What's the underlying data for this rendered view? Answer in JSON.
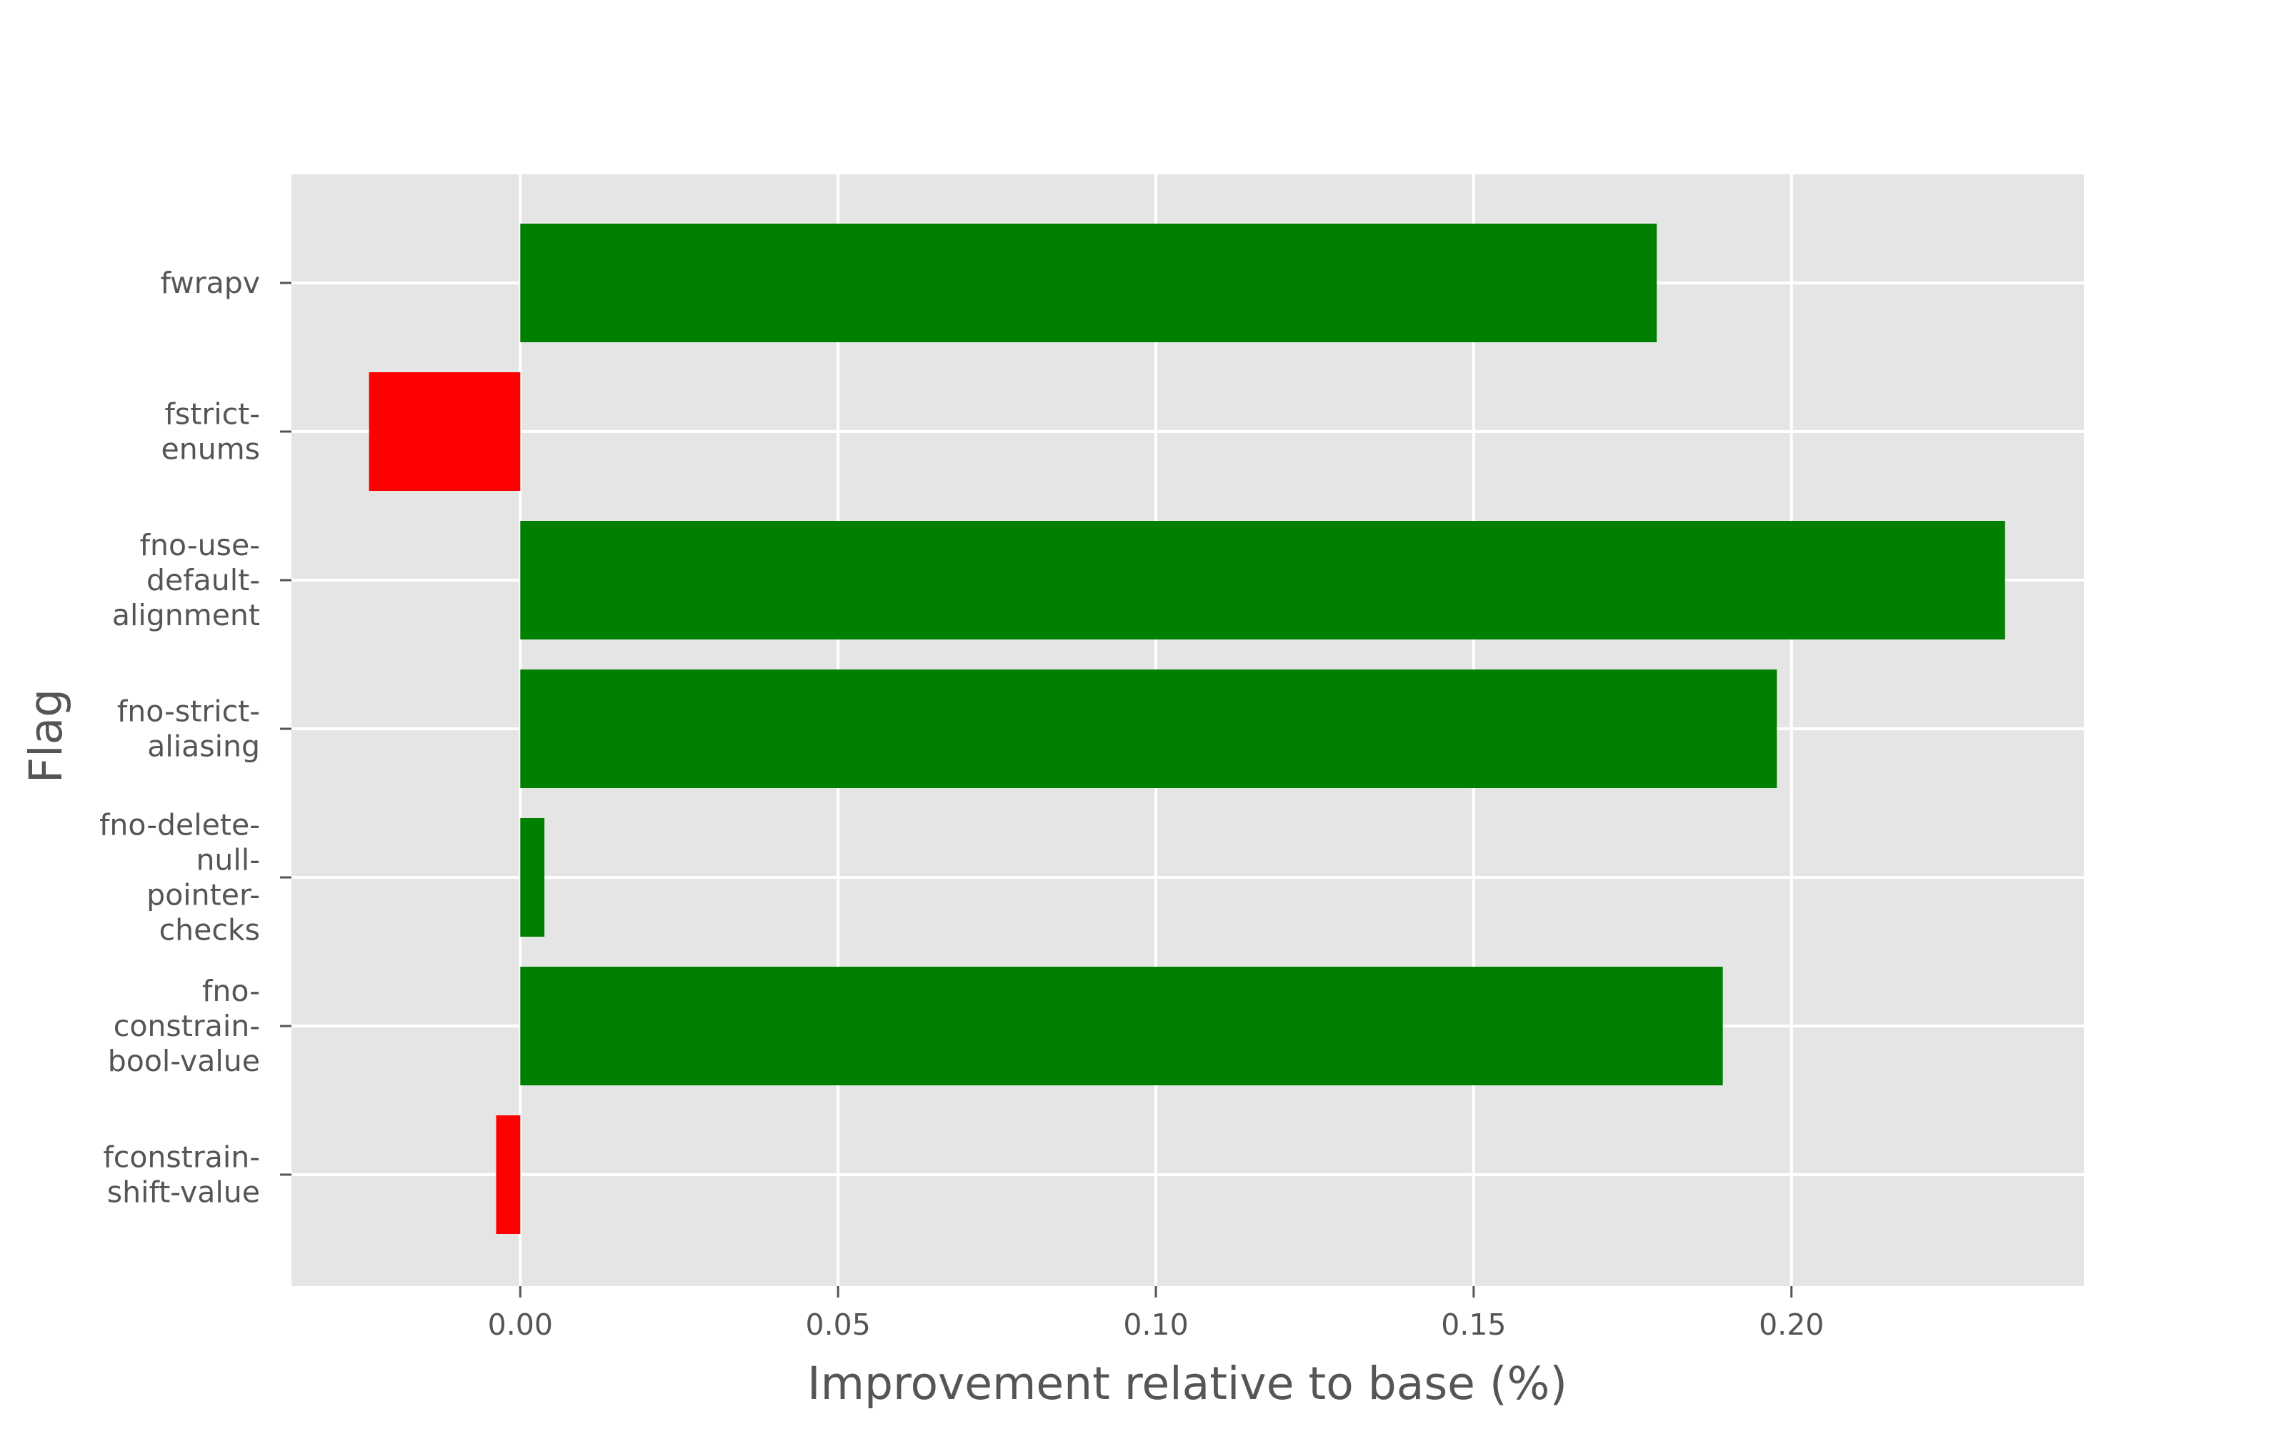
{
  "chart_data": {
    "type": "bar",
    "orientation": "horizontal",
    "title": "",
    "xlabel": "Improvement relative to base (%)",
    "ylabel": "Flag",
    "xlim": [
      -0.036,
      0.246
    ],
    "xticks": [
      0.0,
      0.05,
      0.1,
      0.15,
      0.2
    ],
    "xtick_labels": [
      "0.00",
      "0.05",
      "0.10",
      "0.15",
      "0.20"
    ],
    "grid": true,
    "categories": [
      "fwrapv",
      "fstrict-enums",
      "fno-use-default-alignment",
      "fno-strict-aliasing",
      "fno-delete-null-pointer-checks",
      "fno-constrain-bool-value",
      "fconstrain-shift-value"
    ],
    "category_label_lines": [
      [
        "fwrapv"
      ],
      [
        "fstrict-",
        "enums"
      ],
      [
        "fno-use-",
        "default-",
        "alignment"
      ],
      [
        "fno-strict-",
        "aliasing"
      ],
      [
        "fno-delete-",
        "null-",
        "pointer-",
        "checks"
      ],
      [
        "fno-",
        "constrain-",
        "bool-value"
      ],
      [
        "fconstrain-",
        "shift-value"
      ]
    ],
    "values": [
      0.1788,
      -0.0238,
      0.2336,
      0.1977,
      0.0038,
      0.1892,
      -0.0038
    ],
    "colors": {
      "positive": "#008000",
      "negative": "#ff0000",
      "background": "#e5e5e5",
      "grid": "#ffffff",
      "text": "#555555"
    }
  }
}
